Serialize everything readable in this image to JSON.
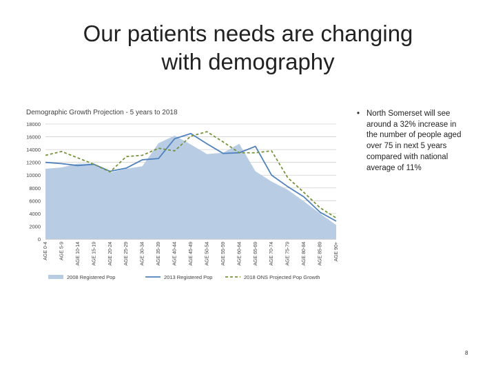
{
  "slide": {
    "title_line1": "Our patients needs are changing",
    "title_line2": "with demography",
    "bullet": "North Somerset  will see around a 32% increase in the number of people aged over 75 in next 5 years compared with national average of 11%",
    "bullet_marker": "•",
    "page_number": "8"
  },
  "chart_data": {
    "type": "line",
    "title": "Demographic Growth Projection - 5 years to 2018",
    "xlabel": "",
    "ylabel": "",
    "ylim": [
      0,
      18000
    ],
    "yticks": [
      0,
      2000,
      4000,
      6000,
      8000,
      10000,
      12000,
      14000,
      16000,
      18000
    ],
    "grid": true,
    "legend_position": "bottom",
    "categories": [
      "AGE 0-4",
      "AGE 5-9",
      "AGE 10-14",
      "AGE 15-19",
      "AGE 20-24",
      "AGE 25-29",
      "AGE 30-34",
      "AGE 35-39",
      "AGE 40-44",
      "AGE 45-49",
      "AGE 50-54",
      "AGE 55-59",
      "AGE 60-64",
      "AGE 65-69",
      "AGE 70-74",
      "AGE 75-79",
      "AGE 80-84",
      "AGE 85-89",
      "AGE 90+"
    ],
    "series": [
      {
        "name": "2008 Registered Pop",
        "kind": "area",
        "color": "#b8cce4",
        "values": [
          11000,
          11200,
          11800,
          11800,
          10400,
          11000,
          11400,
          15000,
          16200,
          14800,
          13300,
          13500,
          14900,
          10600,
          9000,
          7700,
          5900,
          4000,
          2200
        ]
      },
      {
        "name": "2013 Registered Pop",
        "kind": "line",
        "color": "#4f81bd",
        "values": [
          12000,
          11800,
          11500,
          11700,
          10600,
          11100,
          12400,
          12600,
          15700,
          16500,
          14900,
          13400,
          13500,
          14500,
          10000,
          8200,
          6600,
          4200,
          2800
        ]
      },
      {
        "name": "2018 ONS Projected Pop Growth",
        "kind": "dashed",
        "color": "#76923c",
        "values": [
          13100,
          13700,
          12700,
          11700,
          10500,
          12900,
          13100,
          14200,
          13800,
          16100,
          16800,
          15200,
          13500,
          13500,
          13800,
          9600,
          7300,
          4900,
          3300
        ]
      }
    ]
  }
}
